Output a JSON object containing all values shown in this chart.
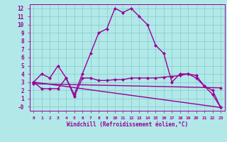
{
  "bg_color": "#b2e8e8",
  "line_color": "#990099",
  "grid_color": "#80cccc",
  "xlabel": "Windchill (Refroidissement éolien,°C)",
  "ylim": [
    -0.5,
    12.5
  ],
  "xlim": [
    -0.5,
    23.5
  ],
  "yticks": [
    0,
    1,
    2,
    3,
    4,
    5,
    6,
    7,
    8,
    9,
    10,
    11,
    12
  ],
  "ytick_labels": [
    "-0",
    "1",
    "2",
    "3",
    "4",
    "5",
    "6",
    "7",
    "8",
    "9",
    "10",
    "11",
    "12"
  ],
  "xticks": [
    0,
    1,
    2,
    3,
    4,
    5,
    6,
    7,
    8,
    9,
    10,
    11,
    12,
    13,
    14,
    15,
    16,
    17,
    18,
    19,
    20,
    21,
    22,
    23
  ],
  "series1_x": [
    0,
    1,
    2,
    3,
    4,
    5,
    6,
    7,
    8,
    9,
    10,
    11,
    12,
    13,
    14,
    15,
    16,
    17,
    18,
    19,
    20,
    21,
    22,
    23
  ],
  "series1_y": [
    3.0,
    4.0,
    3.5,
    5.0,
    3.5,
    1.5,
    4.0,
    6.5,
    9.0,
    9.5,
    12.0,
    11.5,
    12.0,
    11.0,
    10.0,
    7.5,
    6.5,
    3.0,
    4.0,
    4.0,
    3.5,
    2.5,
    1.5,
    -0.1
  ],
  "series2_x": [
    0,
    1,
    2,
    3,
    4,
    5,
    6,
    7,
    8,
    9,
    10,
    11,
    12,
    13,
    14,
    15,
    16,
    17,
    18,
    19,
    20,
    21,
    22,
    23
  ],
  "series2_y": [
    3.0,
    2.2,
    2.2,
    2.2,
    3.5,
    1.2,
    3.5,
    3.5,
    3.2,
    3.2,
    3.3,
    3.3,
    3.5,
    3.5,
    3.5,
    3.5,
    3.6,
    3.7,
    3.8,
    4.0,
    3.8,
    2.5,
    2.0,
    -0.1
  ],
  "series3_x": [
    0,
    23
  ],
  "series3_y": [
    3.0,
    -0.1
  ],
  "series4_x": [
    0,
    23
  ],
  "series4_y": [
    2.8,
    2.3
  ],
  "markersize": 2.5,
  "linewidth": 1.0
}
